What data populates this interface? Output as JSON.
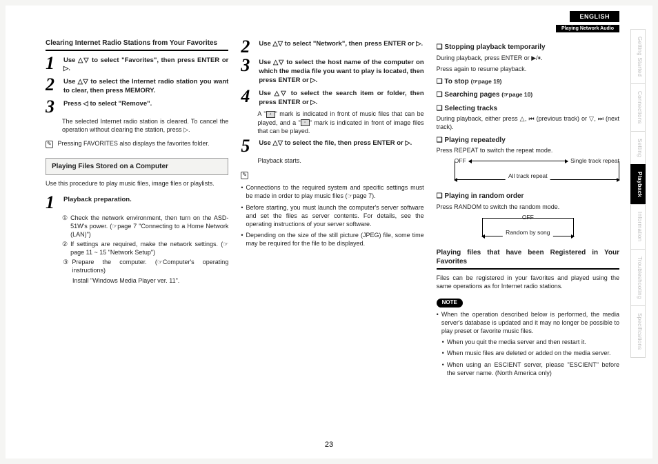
{
  "lang": "ENGLISH",
  "breadcrumb": "Playing Network Audio",
  "pageNum": "23",
  "sideTabs": [
    {
      "label": "Getting Started",
      "active": false
    },
    {
      "label": "Connections",
      "active": false
    },
    {
      "label": "Setting",
      "active": false
    },
    {
      "label": "Playback",
      "active": true
    },
    {
      "label": "Information",
      "active": false
    },
    {
      "label": "Troubleshooting",
      "active": false
    },
    {
      "label": "Specifications",
      "active": false
    }
  ],
  "col1": {
    "title": "Clearing Internet Radio Stations from Your Favorites",
    "step1": "Use △▽ to select \"Favorites\", then press ENTER or ▷.",
    "step2": "Use △▽ to select the Internet radio station you want to clear, then press MEMORY.",
    "step3a": "Press ◁ to select \"Remove\".",
    "step3b": "The selected Internet radio station is cleared. To cancel the operation without clearing the station, press ▷.",
    "note": "Pressing FAVORITES also displays the favorites folder.",
    "boxHeading": "Playing Files Stored on a Computer",
    "body": "Use this procedure to play music files, image files or playlists.",
    "p1": "Playback preparation.",
    "p1a": "Check the network environment, then turn on the ASD-51W's power. (☞page 7 \"Connecting to a Home Network (LAN)\")",
    "p1b": "If settings are required, make the network settings. (☞page 11 ~ 15 \"Network Setup\")",
    "p1c": "Prepare the computer. (☞Computer's operating instructions)",
    "p1d": "Install \"Windows Media Player ver. 11\"."
  },
  "col2": {
    "step2": "Use △▽ to select \"Network\", then press ENTER or ▷.",
    "step3": "Use △▽ to select the host name of the computer on which the media file you want to play is located, then press ENTER or ▷.",
    "step4a": "Use △▽ to select the search item or folder, then press ENTER or ▷.",
    "step4b1": "A \"",
    "step4b2": "\" mark is indicated in front of music files that can be played, and a \"",
    "step4b3": "\" mark is indicated in front of image files that can be played.",
    "step5a": "Use △▽ to select the file, then press ENTER or ▷.",
    "step5b": "Playback starts.",
    "b1": "Connections to the required system and specific settings must be made in order to play music files (☞page 7).",
    "b2": "Before starting, you must launch the computer's server software and set the files as server contents. For details, see the operating instructions of your server software.",
    "b3": "Depending on the size of the still picture (JPEG) file, some time may be required for the file to be displayed."
  },
  "col3": {
    "h1": "Stopping playback temporarily",
    "p1a": "During playback, press ENTER or ▶/⏸.",
    "p1b": "Press again to resume playback.",
    "h2": "To stop",
    "h2ref": "(☞page 19)",
    "h3": "Searching pages",
    "h3ref": "(☞page 10)",
    "h4": "Selecting tracks",
    "p4": "During playback, either press △, ⏮ (previous track) or ▽, ⏭ (next track).",
    "h5": "Playing repeatedly",
    "p5": "Press REPEAT to switch the repeat mode.",
    "d1a": "OFF",
    "d1b": "Single track repeat",
    "d1c": "All track repeat",
    "h6": "Playing in random order",
    "p6": "Press RANDOM to switch the random mode.",
    "d2a": "OFF",
    "d2b": "Random by song",
    "title2": "Playing files that have been Registered in Your Favorites",
    "body2": "Files can be registered in your favorites and played using the same operations as for Internet radio stations.",
    "noteLabel": "NOTE",
    "n1": "When the operation described below is performed, the media server's database is updated and it may no longer be possible to play preset or favorite music files.",
    "n1a": "When you quit the media server and then restart it.",
    "n1b": "When music files are deleted or added on the media server.",
    "n1c": "When using an ESCIENT server, please \"ESCIENT\" before the server name. (North America only)"
  }
}
